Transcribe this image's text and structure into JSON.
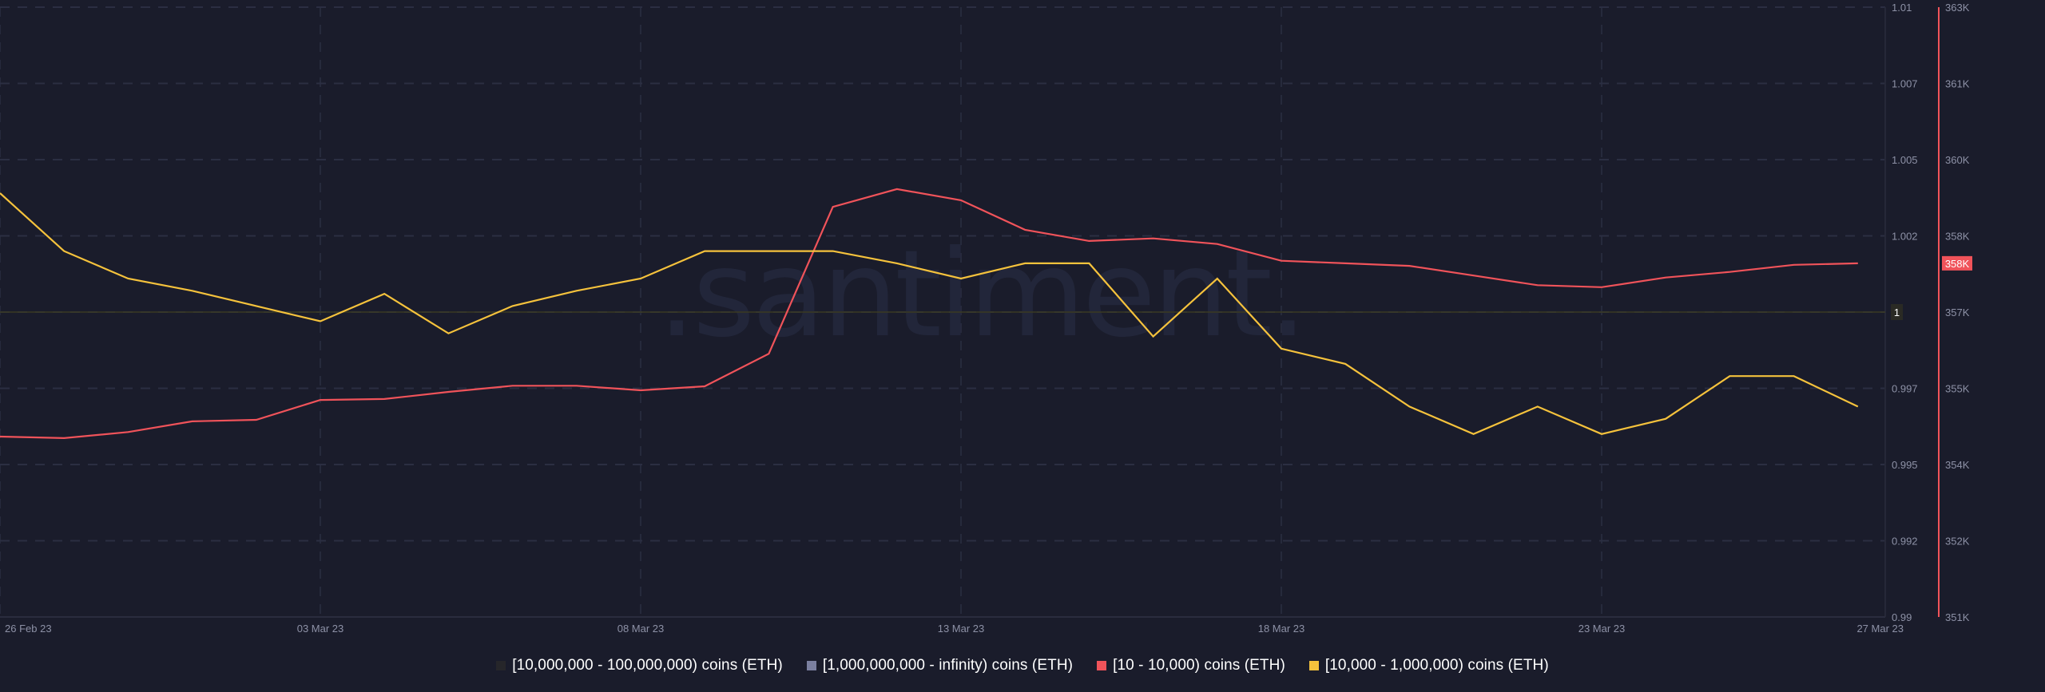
{
  "watermark": ".santiment.",
  "colors": {
    "background": "#1a1c2b",
    "grid": "#2b2e42",
    "axis_text": "#8d91a6",
    "red_series": "#f0535a",
    "yellow_series": "#f5c23c",
    "baseline": "#3a3a22",
    "watermark": "#22263a"
  },
  "legend": [
    {
      "label": "[10,000,000 - 100,000,000) coins (ETH)",
      "color": "#26262a"
    },
    {
      "label": "[1,000,000,000 - infinity) coins (ETH)",
      "color": "#7b80a0"
    },
    {
      "label": "[10 - 10,000) coins (ETH)",
      "color": "#f0535a"
    },
    {
      "label": "[10,000 - 1,000,000) coins (ETH)",
      "color": "#f5c23c"
    }
  ],
  "axes": {
    "x_ticks": [
      "26 Feb 23",
      "03 Mar 23",
      "08 Mar 23",
      "13 Mar 23",
      "18 Mar 23",
      "23 Mar 23",
      "27 Mar 23"
    ],
    "left_ticks": [
      "1.01",
      "1.007",
      "1.005",
      "1.002",
      "1",
      "0.997",
      "0.995",
      "0.992",
      "0.99"
    ],
    "right_ticks": [
      "363K",
      "361K",
      "360K",
      "358K",
      "357K",
      "355K",
      "354K",
      "352K",
      "351K"
    ],
    "left_highlight": "1",
    "right_badge": "358K"
  },
  "chart_data": {
    "type": "line",
    "title": "",
    "xlabel": "",
    "ylabel": "",
    "x": [
      "26 Feb 23",
      "27 Feb 23",
      "28 Feb 23",
      "01 Mar 23",
      "02 Mar 23",
      "03 Mar 23",
      "04 Mar 23",
      "05 Mar 23",
      "06 Mar 23",
      "07 Mar 23",
      "08 Mar 23",
      "09 Mar 23",
      "10 Mar 23",
      "11 Mar 23",
      "12 Mar 23",
      "13 Mar 23",
      "14 Mar 23",
      "15 Mar 23",
      "16 Mar 23",
      "17 Mar 23",
      "18 Mar 23",
      "19 Mar 23",
      "20 Mar 23",
      "21 Mar 23",
      "22 Mar 23",
      "23 Mar 23",
      "24 Mar 23",
      "25 Mar 23",
      "26 Mar 23",
      "27 Mar 23"
    ],
    "series": [
      {
        "name": "[10 - 10,000) coins (ETH)",
        "axis": "right",
        "color": "#f0535a",
        "values": [
          354550,
          354520,
          354640,
          354850,
          354880,
          355270,
          355290,
          355430,
          355550,
          355550,
          355460,
          355540,
          356180,
          359070,
          359420,
          359200,
          358620,
          358400,
          358450,
          358340,
          358010,
          357960,
          357910,
          357720,
          357530,
          357490,
          357680,
          357790,
          357930,
          357960
        ]
      },
      {
        "name": "[10,000 - 1,000,000) coins (ETH)",
        "axis": "left",
        "color": "#f5c23c",
        "values": [
          1.0039,
          1.002,
          1.0011,
          1.0007,
          1.0002,
          0.9997,
          1.0006,
          0.9993,
          1.0002,
          1.0007,
          1.0011,
          1.002,
          1.002,
          1.002,
          1.0016,
          1.0011,
          1.0016,
          1.0016,
          0.9992,
          1.0011,
          0.9988,
          0.9983,
          0.9969,
          0.996,
          0.9969,
          0.996,
          0.9965,
          0.9979,
          0.9979,
          0.9969
        ]
      },
      {
        "name": "[10,000,000 - 100,000,000) coins (ETH)",
        "axis": "left",
        "color": "#26262a",
        "values": []
      },
      {
        "name": "[1,000,000,000 - infinity) coins (ETH)",
        "axis": "left",
        "color": "#7b80a0",
        "values": []
      }
    ],
    "left_ylim": [
      0.99,
      1.01
    ],
    "right_ylim": [
      351000,
      363000
    ],
    "grid": true,
    "legend_position": "bottom"
  }
}
